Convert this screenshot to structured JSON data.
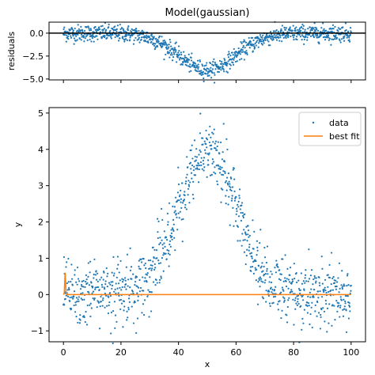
{
  "chart_data": [
    {
      "panel": "residuals",
      "type": "scatter",
      "title": "Model(gaussian)",
      "xlabel": "",
      "ylabel": "residuals",
      "xlim": [
        -5,
        105
      ],
      "ylim": [
        -5.1,
        1.2
      ],
      "xticks": [
        0,
        20,
        40,
        60,
        80,
        100
      ],
      "yticks": [
        -5.0,
        -2.5,
        0.0
      ],
      "ytick_labels": [
        "−5.0",
        "−2.5",
        "0.0"
      ],
      "reference_line_y": 0,
      "marker_color": "#1f77b4",
      "line_color": "#000000",
      "shape": {
        "description_values": "residual = gaussian bump inverted plus noise",
        "amplitude": -4.0,
        "center": 50,
        "sigma": 10,
        "noise": 0.45,
        "x_range": [
          0,
          100
        ],
        "n_points": 1001
      }
    },
    {
      "panel": "main",
      "type": "scatter",
      "title": "",
      "xlabel": "x",
      "ylabel": "y",
      "xlim": [
        -5,
        105
      ],
      "ylim": [
        -1.3,
        5.15
      ],
      "xticks": [
        0,
        20,
        40,
        60,
        80,
        100
      ],
      "xtick_labels": [
        "0",
        "20",
        "40",
        "60",
        "80",
        "100"
      ],
      "yticks": [
        -1,
        0,
        1,
        2,
        3,
        4,
        5
      ],
      "ytick_labels": [
        "−1",
        "0",
        "1",
        "2",
        "3",
        "4",
        "5"
      ],
      "legend": {
        "placement": "top-right",
        "entries": [
          "data",
          "best fit"
        ]
      },
      "series": [
        {
          "name": "data",
          "style": "points",
          "color": "#1f77b4",
          "model": {
            "amplitude": 4.0,
            "center": 50,
            "sigma": 10,
            "noise": 0.45
          },
          "x_range": [
            0,
            100
          ],
          "n_points": 1001
        },
        {
          "name": "best fit",
          "style": "line",
          "color": "#ff7f0e",
          "x": [
            0,
            0.3,
            0.5,
            0.6,
            0.7,
            0.9,
            1.2,
            100
          ],
          "y": [
            0,
            0.05,
            0.45,
            0.6,
            0.45,
            0.05,
            0,
            0
          ]
        }
      ]
    }
  ]
}
